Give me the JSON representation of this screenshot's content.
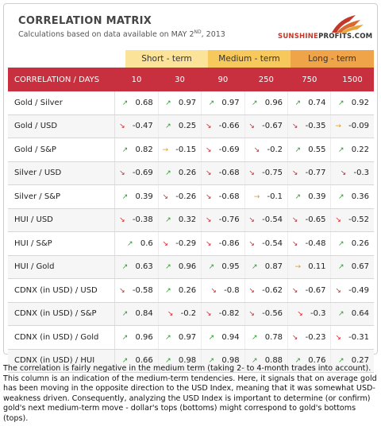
{
  "header": {
    "title": "CORRELATION MATRIX",
    "subtitle_pre": "Calculations based on data available on  MAY 2",
    "subtitle_sup": "ND",
    "subtitle_post": ", 2013",
    "logo_brand": "SUNSHINE",
    "logo_rest": "PROFITS.COM"
  },
  "groups": [
    "Short - term",
    "Medium - term",
    "Long - term"
  ],
  "columns": {
    "first": "CORRELATION / DAYS",
    "days": [
      "10",
      "30",
      "90",
      "250",
      "750",
      "1500"
    ]
  },
  "rows": [
    {
      "label": "Gold / Silver",
      "cells": [
        {
          "dir": "up",
          "value": "0.68"
        },
        {
          "dir": "up",
          "value": "0.97"
        },
        {
          "dir": "up",
          "value": "0.97"
        },
        {
          "dir": "up",
          "value": "0.96"
        },
        {
          "dir": "up",
          "value": "0.74"
        },
        {
          "dir": "up",
          "value": "0.92"
        }
      ]
    },
    {
      "label": "Gold / USD",
      "cells": [
        {
          "dir": "down",
          "value": "-0.47"
        },
        {
          "dir": "up",
          "value": "0.25"
        },
        {
          "dir": "down",
          "value": "-0.66"
        },
        {
          "dir": "down",
          "value": "-0.67"
        },
        {
          "dir": "down",
          "value": "-0.35"
        },
        {
          "dir": "flat",
          "value": "-0.09"
        }
      ]
    },
    {
      "label": "Gold / S&P",
      "cells": [
        {
          "dir": "up",
          "value": "0.82"
        },
        {
          "dir": "flat",
          "value": "-0.15"
        },
        {
          "dir": "down",
          "value": "-0.69"
        },
        {
          "dir": "down",
          "value": "-0.2"
        },
        {
          "dir": "up",
          "value": "0.55"
        },
        {
          "dir": "up",
          "value": "0.22"
        }
      ]
    },
    {
      "label": "Silver / USD",
      "cells": [
        {
          "dir": "down",
          "value": "-0.69"
        },
        {
          "dir": "up",
          "value": "0.26"
        },
        {
          "dir": "down",
          "value": "-0.68"
        },
        {
          "dir": "down",
          "value": "-0.75"
        },
        {
          "dir": "down",
          "value": "-0.77"
        },
        {
          "dir": "down",
          "value": "-0.3"
        }
      ]
    },
    {
      "label": "Silver / S&P",
      "cells": [
        {
          "dir": "up",
          "value": "0.39"
        },
        {
          "dir": "down",
          "value": "-0.26"
        },
        {
          "dir": "down",
          "value": "-0.68"
        },
        {
          "dir": "flat",
          "value": "-0.1"
        },
        {
          "dir": "up",
          "value": "0.39"
        },
        {
          "dir": "up",
          "value": "0.36"
        }
      ]
    },
    {
      "label": "HUI / USD",
      "cells": [
        {
          "dir": "down",
          "value": "-0.38"
        },
        {
          "dir": "up",
          "value": "0.32"
        },
        {
          "dir": "down",
          "value": "-0.76"
        },
        {
          "dir": "down",
          "value": "-0.54"
        },
        {
          "dir": "down",
          "value": "-0.65"
        },
        {
          "dir": "down",
          "value": "-0.52"
        }
      ]
    },
    {
      "label": "HUI / S&P",
      "cells": [
        {
          "dir": "up",
          "value": "0.6"
        },
        {
          "dir": "down",
          "value": "-0.29"
        },
        {
          "dir": "down",
          "value": "-0.86"
        },
        {
          "dir": "down",
          "value": "-0.54"
        },
        {
          "dir": "down",
          "value": "-0.48"
        },
        {
          "dir": "up",
          "value": "0.26"
        }
      ]
    },
    {
      "label": "HUI / Gold",
      "cells": [
        {
          "dir": "up",
          "value": "0.63"
        },
        {
          "dir": "up",
          "value": "0.96"
        },
        {
          "dir": "up",
          "value": "0.95"
        },
        {
          "dir": "up",
          "value": "0.87"
        },
        {
          "dir": "flat",
          "value": "0.11"
        },
        {
          "dir": "up",
          "value": "0.67"
        }
      ]
    },
    {
      "label": "CDNX (in USD) / USD",
      "cells": [
        {
          "dir": "down",
          "value": "-0.58"
        },
        {
          "dir": "up",
          "value": "0.26"
        },
        {
          "dir": "down",
          "value": "-0.8"
        },
        {
          "dir": "down",
          "value": "-0.62"
        },
        {
          "dir": "down",
          "value": "-0.67"
        },
        {
          "dir": "down",
          "value": "-0.49"
        }
      ]
    },
    {
      "label": "CDNX (in USD) / S&P",
      "cells": [
        {
          "dir": "up",
          "value": "0.84"
        },
        {
          "dir": "down",
          "value": "-0.2"
        },
        {
          "dir": "down",
          "value": "-0.82"
        },
        {
          "dir": "down",
          "value": "-0.56"
        },
        {
          "dir": "down",
          "value": "-0.3"
        },
        {
          "dir": "up",
          "value": "0.64"
        }
      ]
    },
    {
      "label": "CDNX (in USD) / Gold",
      "cells": [
        {
          "dir": "up",
          "value": "0.96"
        },
        {
          "dir": "up",
          "value": "0.97"
        },
        {
          "dir": "up",
          "value": "0.94"
        },
        {
          "dir": "up",
          "value": "0.78"
        },
        {
          "dir": "down",
          "value": "-0.23"
        },
        {
          "dir": "down",
          "value": "-0.31"
        }
      ]
    },
    {
      "label": "CDNX (in USD) / HUI",
      "cells": [
        {
          "dir": "up",
          "value": "0.66"
        },
        {
          "dir": "up",
          "value": "0.98"
        },
        {
          "dir": "up",
          "value": "0.98"
        },
        {
          "dir": "up",
          "value": "0.88"
        },
        {
          "dir": "up",
          "value": "0.76"
        },
        {
          "dir": "up",
          "value": "0.27"
        }
      ]
    }
  ],
  "arrow_icons": {
    "up": "arrow-up-green-icon",
    "down": "arrow-down-red-icon",
    "flat": "arrow-right-orange-icon"
  },
  "colors": {
    "header_red": "#c9303f",
    "short": "#fbe39a",
    "medium": "#f7c95c",
    "long": "#f0a44a",
    "up": "#2e9a2e",
    "down": "#c8282f",
    "flat": "#e39a1c"
  },
  "note": "The correlation is fairly negative in the medium term (taking 2- to 4-month trades into account). This column is an indication of the medium-term tendencies. Here, it signals that on average gold has been moving in the opposite direction to the USD Index, meaning that it was somewhat USD-weakness driven. Consequently, analyzing the USD Index is important to determine (or confirm) gold's next medium-term move - dollar's tops (bottoms) might correspond to gold's bottoms (tops)."
}
